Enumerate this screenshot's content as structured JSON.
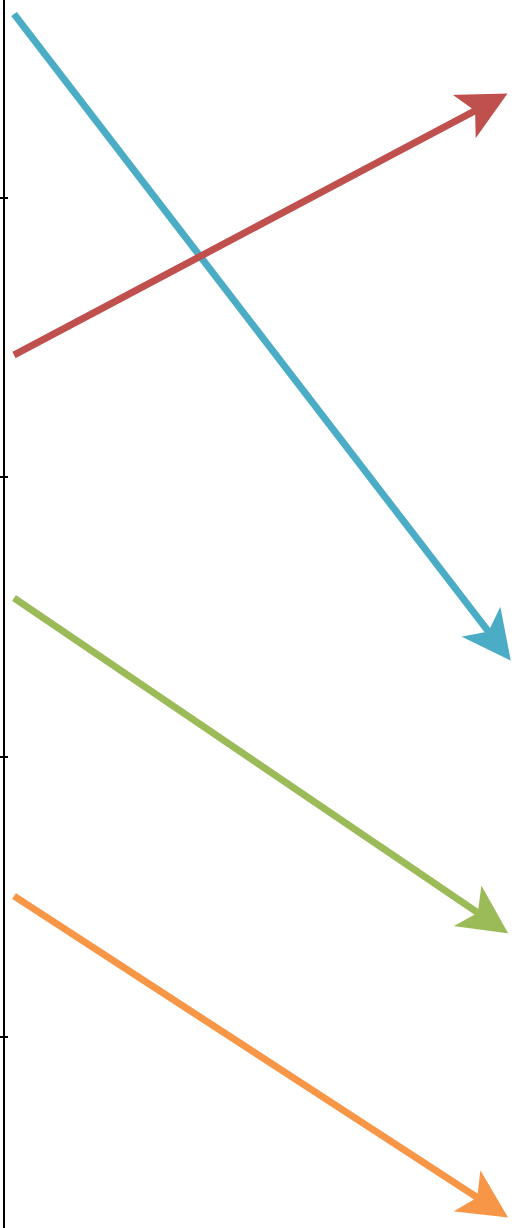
{
  "diagram": {
    "background": "#ffffff",
    "axis": {
      "color": "#000000",
      "tick_count": 4
    },
    "arrows": [
      {
        "id": "blue-arrow",
        "color": "#4bacc6",
        "direction": "down-right"
      },
      {
        "id": "red-arrow",
        "color": "#c0504d",
        "direction": "up-right"
      },
      {
        "id": "green-arrow",
        "color": "#9bbb59",
        "direction": "down-right"
      },
      {
        "id": "orange-arrow",
        "color": "#f79646",
        "direction": "down-right"
      }
    ]
  }
}
